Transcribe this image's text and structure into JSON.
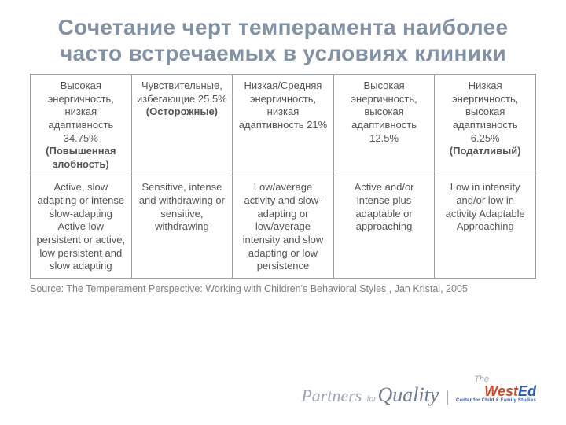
{
  "title": "Сочетание черт темперамента наиболее часто встречаемых в условиях клиники",
  "table": {
    "row1": [
      {
        "plain": "Высокая энергичность, низкая адаптивность 34.75%",
        "bold": "(Повышенная злобность)"
      },
      {
        "plain": "Чувствительные, избегающие 25.5%",
        "bold": "(Осторожные)"
      },
      {
        "plain": "Низкая/Средняя энергичность, низкая адаптивность 21%",
        "bold": ""
      },
      {
        "plain": "Высокая энергичность, высокая адаптивность 12.5%",
        "bold": ""
      },
      {
        "plain": "Низкая энергичность, высокая адаптивность 6.25%",
        "bold": "(Податливый)"
      }
    ],
    "row2": [
      "Active, slow adapting or intense slow-adapting Active low persistent or active, low persistent and slow adapting",
      "Sensitive, intense and withdrawing or sensitive, withdrawing",
      "Low/average activity and slow-adapting or low/average intensity and slow adapting or low persistence",
      "Active and/or intense plus adaptable or approaching",
      "Low in intensity and/or low in activity Adaptable Approaching"
    ]
  },
  "source": "Source: The Temperament Perspective: Working with Children's Behavioral Styles , Jan Kristal, 2005",
  "logo": {
    "line1": "The",
    "partners": "Partners",
    "for": "for",
    "quality": "Quality",
    "west": "West",
    "ed": "Ed",
    "sub": "Center for Child & Family Studies"
  },
  "colors": {
    "title": "#8292a4",
    "body_text": "#555555",
    "border": "#9aa0a6",
    "source": "#808080",
    "logo_light": "#9aa6b4",
    "logo_dark": "#6d7d90",
    "west_w": "#c94b2a",
    "west_ed": "#2b5da8",
    "background": "#ffffff"
  }
}
